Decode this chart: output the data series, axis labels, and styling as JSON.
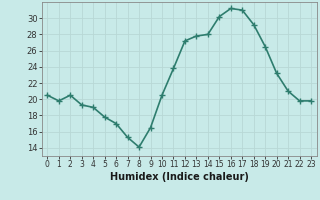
{
  "x": [
    0,
    1,
    2,
    3,
    4,
    5,
    6,
    7,
    8,
    9,
    10,
    11,
    12,
    13,
    14,
    15,
    16,
    17,
    18,
    19,
    20,
    21,
    22,
    23
  ],
  "y": [
    20.5,
    19.8,
    20.5,
    19.3,
    19.0,
    17.8,
    17.0,
    15.3,
    14.1,
    16.5,
    20.5,
    23.8,
    27.2,
    27.8,
    28.0,
    30.2,
    31.2,
    31.0,
    29.2,
    26.5,
    23.2,
    21.0,
    19.8,
    19.8
  ],
  "line_color": "#2e7d6e",
  "bg_color": "#c8eae8",
  "grid_color": "#b8d8d5",
  "xlabel": "Humidex (Indice chaleur)",
  "xlim": [
    -0.5,
    23.5
  ],
  "ylim": [
    13,
    32
  ],
  "yticks": [
    14,
    16,
    18,
    20,
    22,
    24,
    26,
    28,
    30
  ],
  "xticks": [
    0,
    1,
    2,
    3,
    4,
    5,
    6,
    7,
    8,
    9,
    10,
    11,
    12,
    13,
    14,
    15,
    16,
    17,
    18,
    19,
    20,
    21,
    22,
    23
  ],
  "marker": "+",
  "markersize": 4,
  "markeredgewidth": 1.0,
  "linewidth": 1.2,
  "xlabel_fontsize": 7,
  "tick_fontsize": 5.5,
  "ytick_fontsize": 6.0
}
